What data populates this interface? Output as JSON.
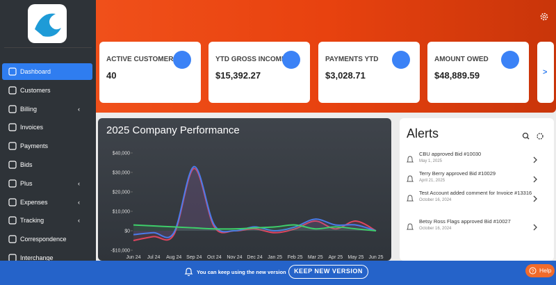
{
  "sidebar": {
    "items": [
      {
        "label": "Dashboard",
        "expandable": false,
        "active": true
      },
      {
        "label": "Customers",
        "expandable": false,
        "active": false
      },
      {
        "label": "Billing",
        "expandable": true,
        "active": false
      },
      {
        "label": "Invoices",
        "expandable": false,
        "active": false
      },
      {
        "label": "Payments",
        "expandable": false,
        "active": false
      },
      {
        "label": "Bids",
        "expandable": false,
        "active": false
      },
      {
        "label": "Plus",
        "expandable": true,
        "active": false
      },
      {
        "label": "Expenses",
        "expandable": true,
        "active": false
      },
      {
        "label": "Tracking",
        "expandable": true,
        "active": false
      },
      {
        "label": "Correspondence",
        "expandable": false,
        "active": false
      },
      {
        "label": "Interchange",
        "expandable": false,
        "active": false
      }
    ]
  },
  "cards": [
    {
      "label": "ACTIVE CUSTOMERS",
      "value": "40"
    },
    {
      "label": "YTD GROSS INCOME",
      "value": "$15,392.27"
    },
    {
      "label": "PAYMENTS YTD",
      "value": "$3,028.71"
    },
    {
      "label": "AMOUNT OWED",
      "value": "$48,889.59"
    }
  ],
  "cards_next": ">",
  "alerts": {
    "title": "Alerts",
    "items": [
      {
        "text": "CBU approved Bid #10030",
        "date": "May 1, 2025"
      },
      {
        "text": "Terry Berry approved Bid #10029",
        "date": "April 21, 2025"
      },
      {
        "text": "Test Account added comment for Invoice #13316",
        "date": "October 16, 2024"
      },
      {
        "text": "Betsy Ross Flags approved Bid #10027",
        "date": "October 16, 2024"
      }
    ]
  },
  "banner": {
    "message": "You can keep using the new version",
    "button": "KEEP NEW VERSION",
    "help": "Help"
  },
  "chart_data": {
    "type": "line",
    "title": "2025 Company Performance",
    "categories": [
      "Jun 24",
      "Jul 24",
      "Aug 24",
      "Sep 24",
      "Oct 24",
      "Nov 24",
      "Dec 24",
      "Jan 25",
      "Feb 25",
      "Mar 25",
      "Apr 25",
      "May 25",
      "Jun 25"
    ],
    "series": [
      {
        "color": "#e0455f",
        "values": [
          -5000,
          -3000,
          -2000,
          32000,
          2000,
          0,
          1000,
          -1000,
          1000,
          5000,
          1000,
          5000,
          0
        ]
      },
      {
        "color": "#4a7bea",
        "values": [
          -2000,
          -1000,
          -1000,
          33000,
          3000,
          0,
          2000,
          0,
          2000,
          6000,
          3000,
          3000,
          0
        ]
      },
      {
        "color": "#3ecf6a",
        "values": [
          3000,
          2500,
          2000,
          1500,
          1000,
          1000,
          1500,
          2000,
          3000,
          1000,
          2000,
          1000,
          0
        ]
      }
    ],
    "ylim": [
      -12000,
      43000
    ],
    "yticks": [
      {
        "value": -10000,
        "label": "-$10,000"
      },
      {
        "value": 0,
        "label": "$0"
      },
      {
        "value": 10000,
        "label": "$10,000"
      },
      {
        "value": 20000,
        "label": "$20,000"
      },
      {
        "value": 30000,
        "label": "$30,000"
      },
      {
        "value": 40000,
        "label": "$40,000"
      }
    ]
  }
}
